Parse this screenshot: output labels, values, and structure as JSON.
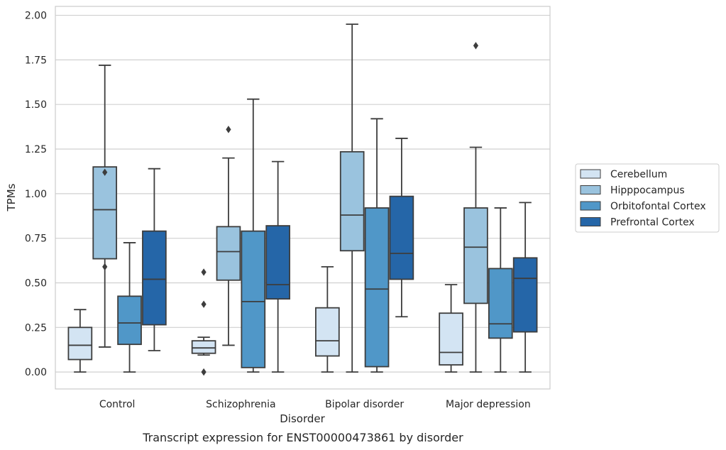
{
  "chart_data": {
    "type": "box",
    "title": "",
    "caption": "Transcript expression for ENST00000473861 by disorder",
    "xlabel": "Disorder",
    "ylabel": "TPMs",
    "ylim": [
      -0.095,
      2.05
    ],
    "yticks": [
      0.0,
      0.25,
      0.5,
      0.75,
      1.0,
      1.25,
      1.5,
      1.75,
      2.0
    ],
    "ytick_labels": [
      "0.00",
      "0.25",
      "0.50",
      "0.75",
      "1.00",
      "1.25",
      "1.50",
      "1.75",
      "2.00"
    ],
    "grid": "horizontal",
    "legend_position": "right-center",
    "categories": [
      "Control",
      "Schizophrenia",
      "Bipolar disorder",
      "Major depression"
    ],
    "series": [
      {
        "name": "Cerebellum",
        "color": "#d3e4f3",
        "boxes": [
          {
            "whislo": 0.0,
            "q1": 0.07,
            "med": 0.15,
            "q3": 0.25,
            "whishi": 0.35,
            "fliers": []
          },
          {
            "whislo": 0.095,
            "q1": 0.105,
            "med": 0.135,
            "q3": 0.175,
            "whishi": 0.195,
            "fliers": [
              0.56,
              0.38,
              0.0
            ]
          },
          {
            "whislo": 0.0,
            "q1": 0.09,
            "med": 0.175,
            "q3": 0.36,
            "whishi": 0.59,
            "fliers": []
          },
          {
            "whislo": 0.0,
            "q1": 0.04,
            "med": 0.11,
            "q3": 0.33,
            "whishi": 0.49,
            "fliers": []
          }
        ]
      },
      {
        "name": "Hipppocampus",
        "color": "#9ac3de",
        "boxes": [
          {
            "whislo": 0.14,
            "q1": 0.635,
            "med": 0.91,
            "q3": 1.15,
            "whishi": 1.72,
            "fliers": [
              1.12,
              0.59
            ]
          },
          {
            "whislo": 0.15,
            "q1": 0.515,
            "med": 0.675,
            "q3": 0.815,
            "whishi": 1.2,
            "fliers": [
              1.36
            ]
          },
          {
            "whislo": 0.0,
            "q1": 0.68,
            "med": 0.88,
            "q3": 1.235,
            "whishi": 1.95,
            "fliers": []
          },
          {
            "whislo": 0.0,
            "q1": 0.385,
            "med": 0.7,
            "q3": 0.92,
            "whishi": 1.26,
            "fliers": [
              1.83
            ]
          }
        ]
      },
      {
        "name": "Orbitofontal Cortex",
        "color": "#5097c8",
        "boxes": [
          {
            "whislo": 0.0,
            "q1": 0.155,
            "med": 0.275,
            "q3": 0.425,
            "whishi": 0.725,
            "fliers": []
          },
          {
            "whislo": 0.0,
            "q1": 0.025,
            "med": 0.395,
            "q3": 0.79,
            "whishi": 1.53,
            "fliers": []
          },
          {
            "whislo": 0.0,
            "q1": 0.03,
            "med": 0.465,
            "q3": 0.92,
            "whishi": 1.42,
            "fliers": []
          },
          {
            "whislo": 0.0,
            "q1": 0.19,
            "med": 0.27,
            "q3": 0.58,
            "whishi": 0.92,
            "fliers": []
          }
        ]
      },
      {
        "name": "Prefrontal Cortex",
        "color": "#2566a8",
        "boxes": [
          {
            "whislo": 0.12,
            "q1": 0.265,
            "med": 0.52,
            "q3": 0.79,
            "whishi": 1.14,
            "fliers": []
          },
          {
            "whislo": 0.0,
            "q1": 0.41,
            "med": 0.49,
            "q3": 0.82,
            "whishi": 1.18,
            "fliers": []
          },
          {
            "whislo": 0.31,
            "q1": 0.52,
            "med": 0.665,
            "q3": 0.985,
            "whishi": 1.31,
            "fliers": []
          },
          {
            "whislo": 0.0,
            "q1": 0.225,
            "med": 0.525,
            "q3": 0.64,
            "whishi": 0.95,
            "fliers": []
          }
        ]
      }
    ]
  }
}
